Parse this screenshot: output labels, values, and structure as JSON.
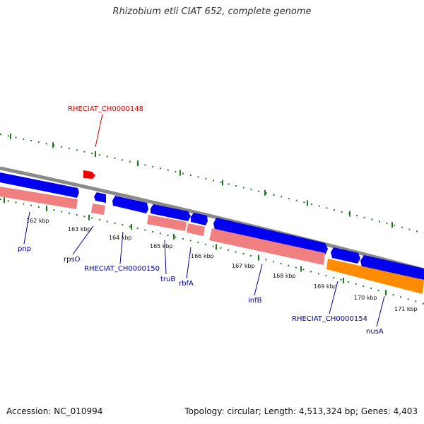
{
  "title": "Rhizobium etli CIAT 652, complete genome",
  "footer": {
    "accession": "Accession: NC_010994",
    "summary": "Topology: circular; Length: 4,513,324 bp; Genes: 4,403"
  },
  "colors": {
    "backbone": "#8a8a8a",
    "forward_gene": "#0000ee",
    "reverse_gene": "#f08080",
    "rrna_gene": "#ff8c00",
    "highlight_gene": "#ee0000",
    "tick": "#1f7a1f",
    "label_blue": "#000099",
    "label_red": "#cc0000"
  },
  "kbp_labels": [
    "162 kbp",
    "163 kbp",
    "164 kbp",
    "165 kbp",
    "166 kbp",
    "167 kbp",
    "168 kbp",
    "169 kbp",
    "170 kbp",
    "171 kbp"
  ],
  "gene_labels": [
    "RHECIAT_CH0000148",
    "pnp",
    "rpsO",
    "RHECIAT_CH0000150",
    "truB",
    "rbfA",
    "infB",
    "RHECIAT_CH0000154",
    "nusA"
  ]
}
